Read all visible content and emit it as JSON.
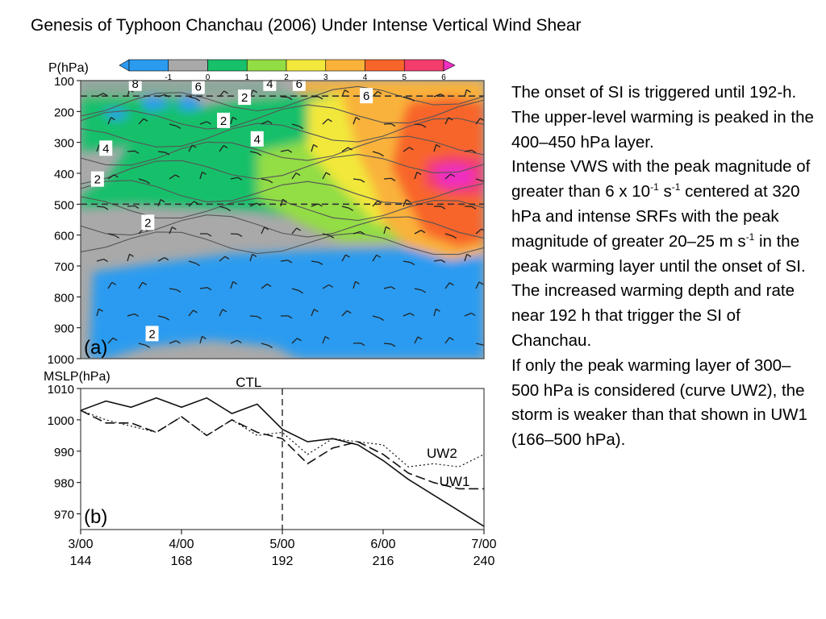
{
  "title": "Genesis of Typhoon Chanchau (2006) Under Intense Vertical Wind Shear",
  "chart_data": [
    {
      "type": "heatmap",
      "panel_label": "(a)",
      "ylabel": "P(hPa)",
      "y_ticks": [
        "100",
        "200",
        "300",
        "400",
        "500",
        "600",
        "700",
        "800",
        "900",
        "1000"
      ],
      "ylim": [
        1000,
        100
      ],
      "xlim": [
        144,
        240
      ],
      "colorbar": {
        "ticks": [
          "-1",
          "0",
          "1",
          "2",
          "3",
          "4",
          "5",
          "6"
        ],
        "colors": [
          "#2b9bf0",
          "#a9a9a9",
          "#17c06a",
          "#93dd44",
          "#f2e83b",
          "#f9b23a",
          "#f8652b",
          "#f23d6d",
          "#ef2ec2"
        ]
      },
      "contour_labels": [
        "8",
        "6",
        "4",
        "6",
        "2",
        "2",
        "4",
        "6",
        "4",
        "2",
        "2",
        "2"
      ],
      "dashed_levels_hPa": [
        150,
        500
      ],
      "annotations": {
        "warm_core": {
          "pressure_range": [
            350,
            450
          ],
          "time_range": [
            225,
            236
          ],
          "value": ">6"
        },
        "cold_layer": {
          "pressure_range": [
            650,
            950
          ],
          "value": "<0"
        }
      },
      "grid": false
    },
    {
      "type": "line",
      "panel_label": "(b)",
      "ylabel": "MSLP(hPa)",
      "y_ticks": [
        "1010",
        "1000",
        "990",
        "980",
        "970"
      ],
      "ylim": [
        965,
        1010
      ],
      "xlim": [
        144,
        240
      ],
      "x_ticks": [
        {
          "value": 144,
          "date": "3/00",
          "hour": "144"
        },
        {
          "value": 168,
          "date": "4/00",
          "hour": "168"
        },
        {
          "value": 192,
          "date": "5/00",
          "hour": "192"
        },
        {
          "value": 216,
          "date": "6/00",
          "hour": "216"
        },
        {
          "value": 240,
          "date": "7/00",
          "hour": "240"
        }
      ],
      "vertical_marker_x": 192,
      "series": [
        {
          "name": "CTL",
          "style": "solid",
          "x": [
            144,
            150,
            156,
            162,
            168,
            174,
            180,
            186,
            192,
            198,
            204,
            210,
            216,
            222,
            228,
            234,
            240
          ],
          "y": [
            1003,
            1006,
            1004,
            1007,
            1004,
            1007,
            1002,
            1005,
            997,
            993,
            994,
            992,
            987,
            981,
            976,
            971,
            966
          ]
        },
        {
          "name": "UW1",
          "style": "dashed",
          "x": [
            144,
            150,
            156,
            162,
            168,
            174,
            180,
            186,
            192,
            198,
            204,
            210,
            216,
            222,
            228,
            234,
            240
          ],
          "y": [
            1003,
            999,
            999,
            996,
            1001,
            995,
            1000,
            996,
            994,
            986,
            991,
            993,
            989,
            983,
            980,
            978,
            978
          ]
        },
        {
          "name": "UW2",
          "style": "dotted",
          "x": [
            144,
            150,
            156,
            162,
            168,
            174,
            180,
            186,
            192,
            198,
            204,
            210,
            216,
            222,
            228,
            234,
            240
          ],
          "y": [
            1003,
            1000,
            998,
            996,
            1001,
            995,
            1000,
            995,
            996,
            989,
            994,
            993,
            992,
            985,
            986,
            985,
            989
          ]
        }
      ],
      "grid": false
    }
  ],
  "notes": [
    {
      "parts": [
        {
          "t": "The onset of SI is triggered until 192-h."
        }
      ]
    },
    {
      "parts": [
        {
          "t": "The upper-level warming is peaked in the 400–450 hPa layer."
        }
      ]
    },
    {
      "parts": [
        {
          "t": "Intense VWS with the peak magnitude of greater than 6 x 10"
        },
        {
          "sup": "-1"
        },
        {
          "t": " s"
        },
        {
          "sup": "-1"
        },
        {
          "t": " centered at 320 hPa and intense SRFs with the peak magnitude of greater 20–25 m s"
        },
        {
          "sup": "-1"
        },
        {
          "t": " in the peak warming layer until the onset of SI."
        }
      ]
    },
    {
      "parts": [
        {
          "t": "The increased warming depth and rate near 192 h that trigger the SI of Chanchau."
        }
      ]
    },
    {
      "parts": [
        {
          "t": "If only the peak warming layer of 300–500 hPa is considered (curve UW2), the storm is weaker than that shown in UW1 (166–500 hPa)."
        }
      ]
    }
  ]
}
